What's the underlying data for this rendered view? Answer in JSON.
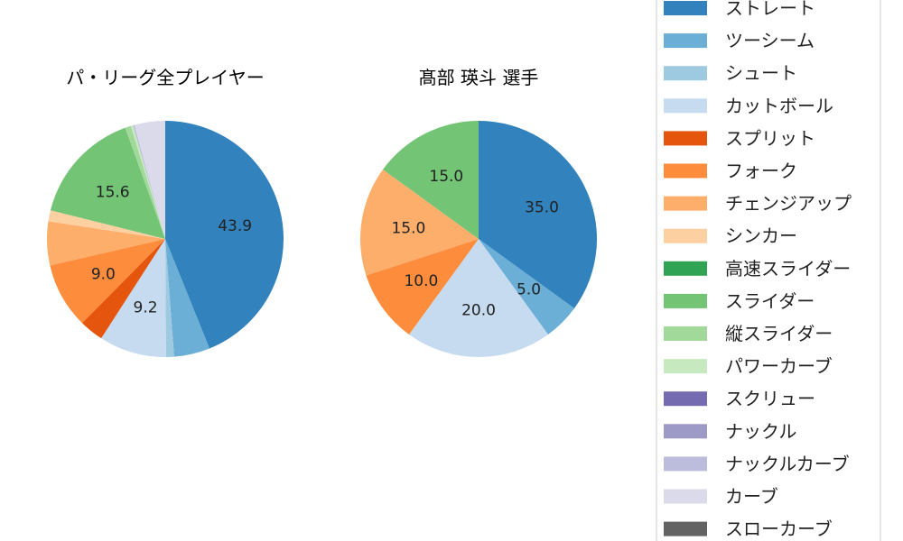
{
  "chart_data": [
    {
      "type": "pie",
      "title": "パ・リーグ全プレイヤー",
      "labels": [
        "ストレート",
        "ツーシーム",
        "シュート",
        "カットボール",
        "スプリット",
        "フォーク",
        "チェンジアップ",
        "シンカー",
        "高速スライダー",
        "スライダー",
        "縦スライダー",
        "パワーカーブ",
        "スクリュー",
        "ナックル",
        "ナックルカーブ",
        "カーブ",
        "スローカーブ"
      ],
      "values": [
        43.9,
        4.9,
        1.1,
        9.2,
        3.3,
        9.0,
        6.0,
        1.5,
        0,
        15.6,
        0.8,
        0.3,
        0,
        0,
        0.2,
        4.2,
        0
      ],
      "shown_labels": [
        "43.9",
        "",
        "",
        "9.2",
        "",
        "9.0",
        "",
        "",
        "",
        "15.6",
        "",
        "",
        "",
        "",
        "",
        "",
        ""
      ]
    },
    {
      "type": "pie",
      "title": "髙部 瑛斗  選手",
      "labels": [
        "ストレート",
        "ツーシーム",
        "シュート",
        "カットボール",
        "スプリット",
        "フォーク",
        "チェンジアップ",
        "シンカー",
        "高速スライダー",
        "スライダー",
        "縦スライダー",
        "パワーカーブ",
        "スクリュー",
        "ナックル",
        "ナックルカーブ",
        "カーブ",
        "スローカーブ"
      ],
      "values": [
        35.0,
        5.0,
        0,
        20.0,
        0,
        10.0,
        15.0,
        0,
        0,
        15.0,
        0,
        0,
        0,
        0,
        0,
        0,
        0
      ],
      "shown_labels": [
        "35.0",
        "5.0",
        "",
        "20.0",
        "",
        "10.0",
        "15.0",
        "",
        "",
        "15.0",
        "",
        "",
        "",
        "",
        "",
        "",
        ""
      ]
    }
  ],
  "legend": {
    "placement": "right",
    "entries": [
      "ストレート",
      "ツーシーム",
      "シュート",
      "カットボール",
      "スプリット",
      "フォーク",
      "チェンジアップ",
      "シンカー",
      "高速スライダー",
      "スライダー",
      "縦スライダー",
      "パワーカーブ",
      "スクリュー",
      "ナックル",
      "ナックルカーブ",
      "カーブ",
      "スローカーブ"
    ]
  },
  "colors": [
    "#3182bd",
    "#6baed6",
    "#9ecae1",
    "#c6dbef",
    "#e6550d",
    "#fd8d3c",
    "#fdae6b",
    "#fdd0a2",
    "#31a354",
    "#74c476",
    "#a1d99b",
    "#c7e9c0",
    "#756bb1",
    "#9e9ac8",
    "#bcbddc",
    "#dadaeb",
    "#636363"
  ]
}
